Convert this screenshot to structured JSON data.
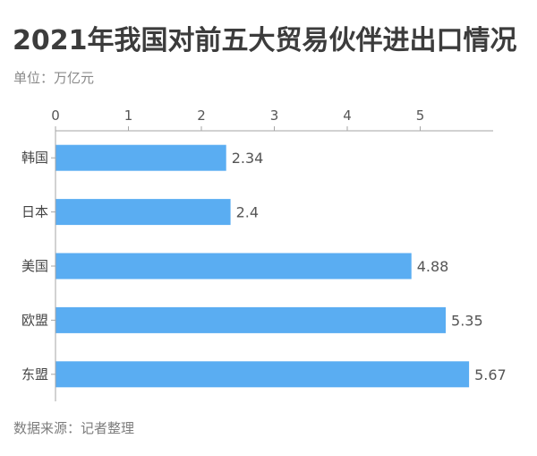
{
  "chart_data": {
    "type": "bar",
    "orientation": "horizontal",
    "title": "2021年我国对前五大贸易伙伴进出口情况",
    "subtitle": "单位：万亿元",
    "categories": [
      "韩国",
      "日本",
      "美国",
      "欧盟",
      "东盟"
    ],
    "values": [
      2.34,
      2.4,
      4.88,
      5.35,
      5.67
    ],
    "x_ticks": [
      0,
      1,
      2,
      3,
      4,
      5
    ],
    "xlim": [
      0,
      6
    ],
    "x_axis_position": "top",
    "grid": false,
    "legend": "none"
  },
  "footer": {
    "source": "数据来源：记者整理"
  },
  "colors": {
    "bar": "#5aadf2",
    "axis": "#a6a6a6"
  }
}
